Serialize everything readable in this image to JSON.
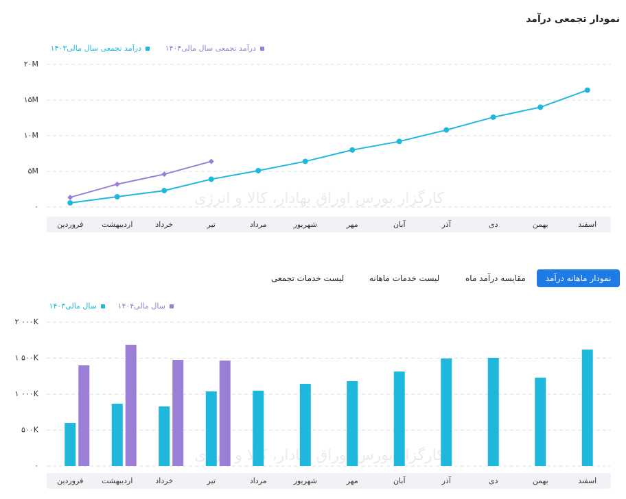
{
  "tabs": [
    "نمودار ماهانه درآمد",
    "مقایسه درآمد ماه",
    "لیست خدمات ماهانه",
    "لیست خدمات تجمعی"
  ],
  "watermark": "کارگزار بورس اوراق بهادار، کالا و انرژی",
  "chart_data": [
    {
      "type": "line",
      "title": "نمودار تجمعی درآمد",
      "categories": [
        "فروردین",
        "اردیبهشت",
        "خرداد",
        "تیر",
        "مرداد",
        "شهریور",
        "مهر",
        "آبان",
        "آذر",
        "دی",
        "بهمن",
        "اسفند"
      ],
      "series": [
        {
          "name": "درآمد تجمعی سال مالی۱۴۰۴",
          "color": "#9b7ed6",
          "values": [
            1.35,
            3.2,
            4.6,
            6.4,
            null,
            null,
            null,
            null,
            null,
            null,
            null,
            null
          ]
        },
        {
          "name": "درآمد تجمعی سال مالی۱۴۰۳",
          "color": "#1fb8dc",
          "values": [
            0.58,
            1.44,
            2.3,
            3.9,
            5.1,
            6.4,
            8.0,
            9.2,
            10.8,
            12.6,
            14.0,
            16.4
          ]
        }
      ],
      "ylim": [
        0,
        20
      ],
      "yticks": [
        {
          "value": 0,
          "label": "۰"
        },
        {
          "value": 5,
          "label": "۵M"
        },
        {
          "value": 10,
          "label": "۱۰M"
        },
        {
          "value": 15,
          "label": "۱۵M"
        },
        {
          "value": 20,
          "label": "۲۰M"
        }
      ],
      "grid": true,
      "legend": "top-left"
    },
    {
      "type": "bar",
      "categories": [
        "فروردین",
        "اردیبهشت",
        "خرداد",
        "تیر",
        "مرداد",
        "شهریور",
        "مهر",
        "آبان",
        "آذر",
        "دی",
        "بهمن",
        "اسفند"
      ],
      "series": [
        {
          "name": "سال مالی۱۴۰۴",
          "color": "#9b7ed6",
          "values": [
            1400,
            1686,
            1476,
            1467,
            null,
            null,
            null,
            null,
            null,
            null,
            null,
            null
          ]
        },
        {
          "name": "سال مالی۱۴۰۳",
          "color": "#1fb8dc",
          "values": [
            600,
            867,
            829,
            1038,
            1048,
            1143,
            1181,
            1314,
            1495,
            1505,
            1229,
            1619
          ]
        }
      ],
      "ylim": [
        0,
        2000
      ],
      "yticks": [
        {
          "value": 0,
          "label": "۰"
        },
        {
          "value": 500,
          "label": "۵۰۰K"
        },
        {
          "value": 1000,
          "label": "۱ ۰۰۰K"
        },
        {
          "value": 1500,
          "label": "۱ ۵۰۰K"
        },
        {
          "value": 2000,
          "label": "۲ ۰۰۰K"
        }
      ],
      "grid": true,
      "legend": "top-left"
    }
  ]
}
